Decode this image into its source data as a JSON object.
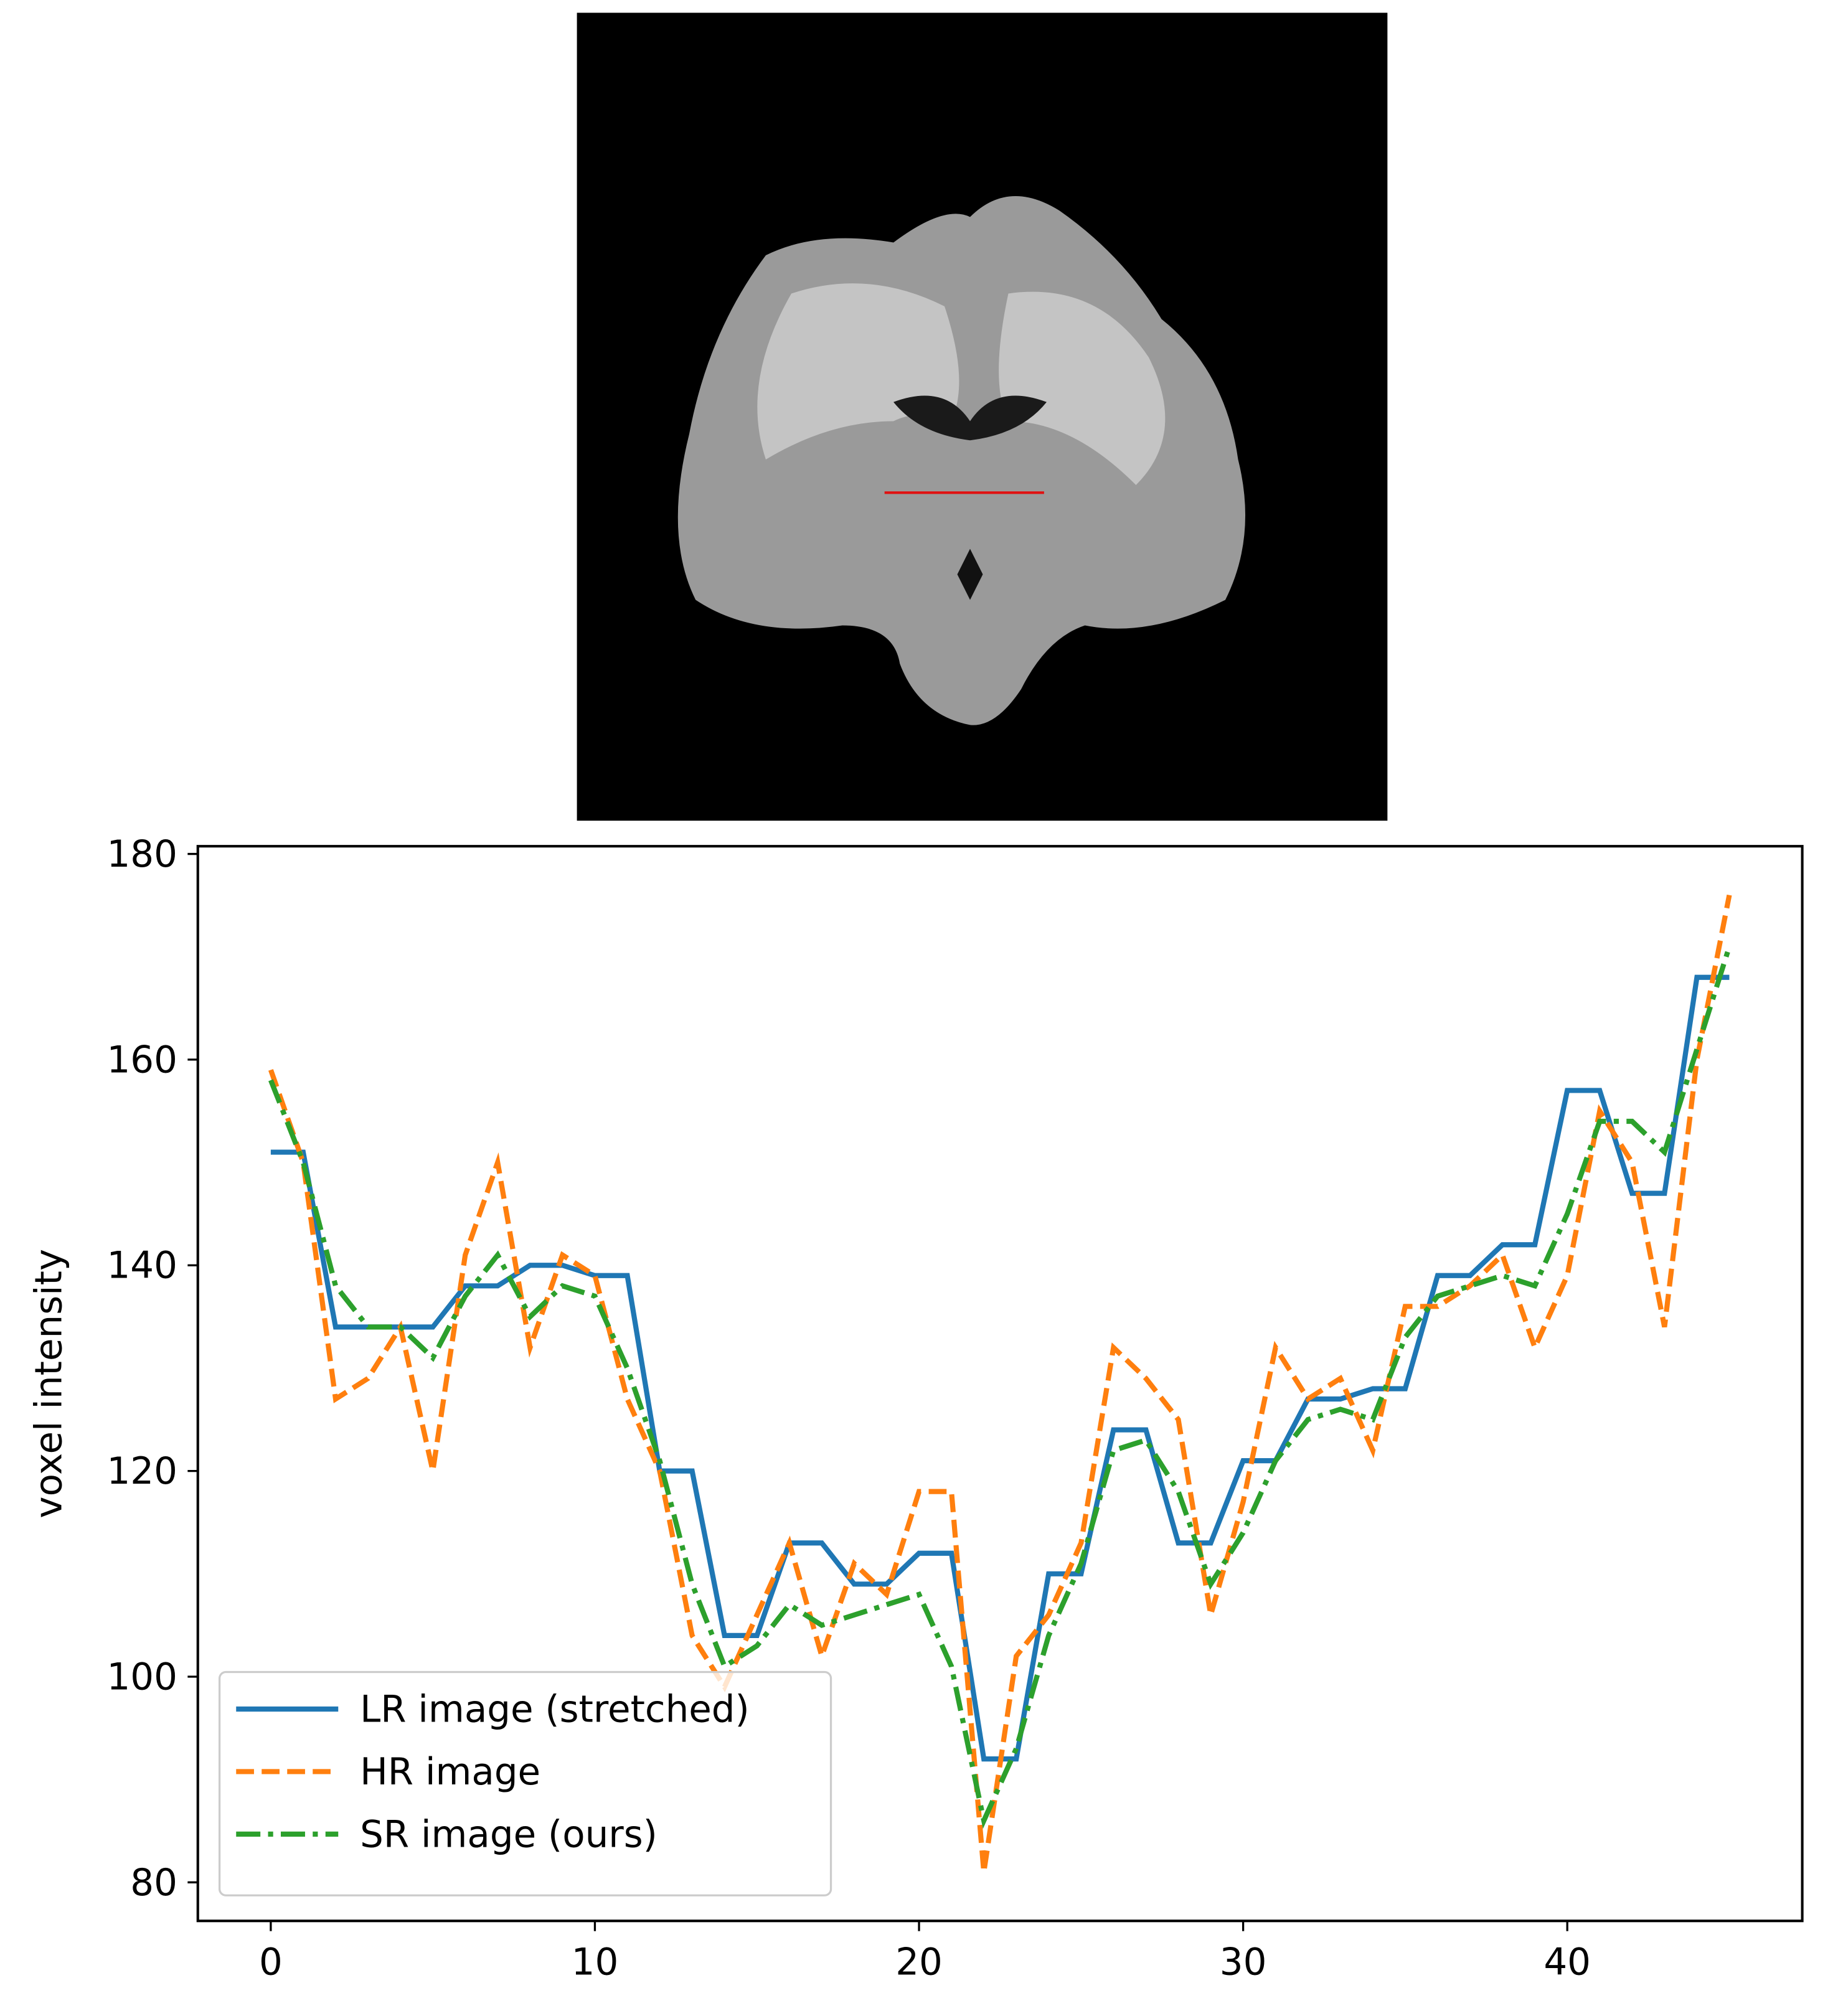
{
  "chart_data": {
    "type": "line",
    "ylabel": "voxel intensity",
    "x": [
      0,
      1,
      2,
      3,
      4,
      5,
      6,
      7,
      8,
      9,
      10,
      11,
      12,
      13,
      14,
      15,
      16,
      17,
      18,
      19,
      20,
      21,
      22,
      23,
      24,
      25,
      26,
      27,
      28,
      29,
      30,
      31,
      32,
      33,
      34,
      35,
      36,
      37,
      38,
      39,
      40,
      41,
      42,
      43,
      44,
      45
    ],
    "series": [
      {
        "name": "LR image (stretched)",
        "color": "#1f77b4",
        "linestyle": "solid",
        "values": [
          151,
          151,
          134,
          134,
          134,
          134,
          138,
          138,
          140,
          140,
          139,
          139,
          120,
          120,
          104,
          104,
          113,
          113,
          109,
          109,
          112,
          112,
          92,
          92,
          110,
          110,
          124,
          124,
          113,
          113,
          121,
          121,
          127,
          127,
          128,
          128,
          139,
          139,
          142,
          142,
          157,
          157,
          147,
          147,
          168,
          168
        ]
      },
      {
        "name": "HR image",
        "color": "#ff7f0e",
        "linestyle": "dashed",
        "values": [
          159,
          150,
          127,
          129,
          134,
          120,
          141,
          150,
          132,
          141,
          139,
          127,
          120,
          104,
          99,
          106,
          113,
          102,
          111,
          108,
          118,
          118,
          81,
          102,
          106,
          113,
          132,
          129,
          125,
          106,
          117,
          132,
          127,
          129,
          122,
          136,
          136,
          138,
          141,
          132,
          139,
          155,
          150,
          134,
          160,
          176
        ]
      },
      {
        "name": "SR image (ours)",
        "color": "#2ca02c",
        "linestyle": "dashdot",
        "values": [
          158,
          150,
          138,
          134,
          134,
          131,
          137,
          141,
          135,
          138,
          137,
          130,
          121,
          109,
          101,
          103,
          107,
          105,
          106,
          107,
          108,
          101,
          86,
          93,
          104,
          111,
          122,
          123,
          118,
          109,
          114,
          121,
          125,
          126,
          125,
          133,
          137,
          138,
          139,
          138,
          145,
          154,
          154,
          151,
          161,
          171
        ]
      }
    ],
    "xlim": [
      -2.25,
      47.25
    ],
    "ylim": [
      76.25,
      180.75
    ],
    "xticks": [
      0,
      10,
      20,
      30,
      40
    ],
    "yticks": [
      80,
      100,
      120,
      140,
      160,
      180
    ],
    "legend": "lower left"
  }
}
